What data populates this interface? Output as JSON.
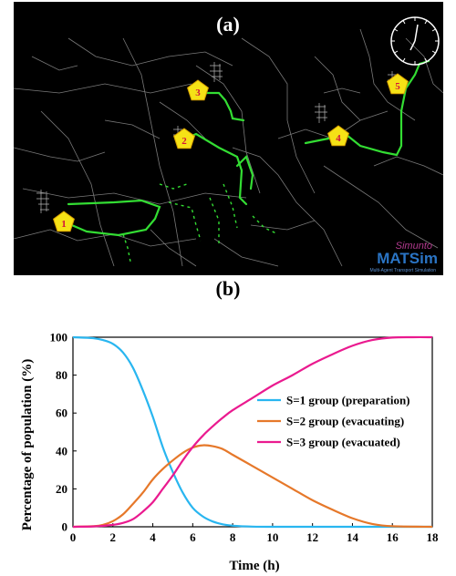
{
  "panel_a": {
    "label": "(a)",
    "markers": [
      "1",
      "2",
      "3",
      "4",
      "5"
    ],
    "brand_simunto": "Simunto",
    "brand_matsim": "MATSim",
    "brand_matsim_sub": "Multi-Agent Transport Simulation",
    "colors": {
      "road": "#9a9a9a",
      "evac_route": "#33dd33",
      "marker_fill": "#f5e216",
      "marker_text": "#d2143c"
    }
  },
  "chart_data": {
    "type": "line",
    "label": "(b)",
    "xlabel": "Time (h)",
    "ylabel": "Percentage of population (%)",
    "xlim": [
      0,
      18
    ],
    "ylim": [
      0,
      100
    ],
    "xticks": [
      0,
      2,
      4,
      6,
      8,
      10,
      12,
      14,
      16,
      18
    ],
    "yticks": [
      0,
      20,
      40,
      60,
      80,
      100
    ],
    "legend_position": "center-right",
    "grid": false,
    "series": [
      {
        "name": "S=1 group (preparation)",
        "color": "#29b6f0",
        "x": [
          0,
          1,
          1.5,
          2,
          2.5,
          3,
          3.5,
          4,
          4.5,
          5,
          5.5,
          6,
          6.5,
          7,
          7.5,
          8,
          9,
          10,
          12,
          14,
          16,
          18
        ],
        "y": [
          100,
          99.5,
          98.5,
          96.5,
          92,
          84,
          72,
          58,
          42,
          29,
          18,
          10,
          5.5,
          2.8,
          1.3,
          0.6,
          0.1,
          0,
          0,
          0,
          0,
          0
        ]
      },
      {
        "name": "S=2 group (evacuating)",
        "color": "#e6782a",
        "x": [
          0,
          1,
          1.5,
          2,
          2.5,
          3,
          3.5,
          4,
          4.5,
          5,
          5.5,
          6,
          6.5,
          7,
          7.5,
          8,
          9,
          10,
          11,
          12,
          13,
          14,
          15,
          16,
          18
        ],
        "y": [
          0,
          0.3,
          1,
          3,
          6.5,
          12,
          18,
          25,
          30.5,
          35,
          39,
          41.8,
          43,
          42.5,
          41,
          38,
          32,
          26,
          20,
          14,
          9,
          4.5,
          1.5,
          0.3,
          0
        ]
      },
      {
        "name": "S=3 group (evacuated)",
        "color": "#ea1a8f",
        "x": [
          0,
          1,
          1.5,
          2,
          2.5,
          3,
          3.5,
          4,
          4.5,
          5,
          5.5,
          6,
          6.5,
          7,
          7.5,
          8,
          9,
          10,
          11,
          12,
          13,
          14,
          15,
          16,
          17,
          18
        ],
        "y": [
          0,
          0.2,
          0.5,
          1,
          2,
          4,
          8,
          13,
          20,
          27,
          35,
          42,
          48,
          53,
          57.5,
          61.5,
          68,
          74.5,
          80,
          86,
          91,
          95.5,
          98.5,
          99.8,
          100,
          100
        ]
      }
    ]
  }
}
